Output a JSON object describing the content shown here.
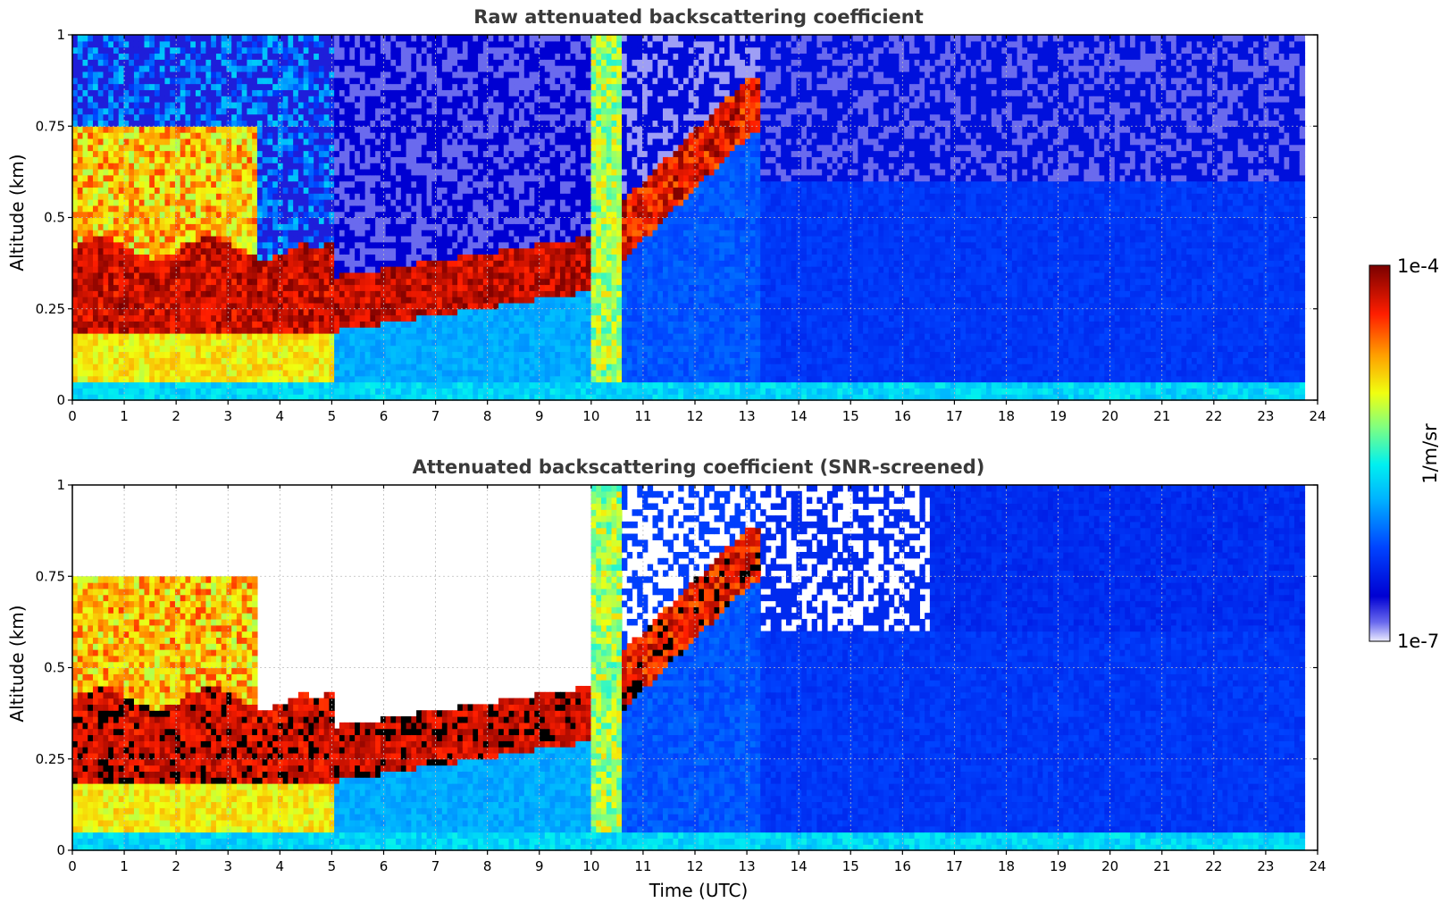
{
  "chart_data": [
    {
      "type": "heatmap",
      "title": "Raw attenuated backscattering coefficient",
      "xlabel": "",
      "ylabel": "Altitude (km)",
      "xlim": [
        0,
        24
      ],
      "ylim": [
        0,
        1
      ],
      "xticks": [
        "0",
        "1",
        "2",
        "3",
        "4",
        "5",
        "6",
        "7",
        "8",
        "9",
        "10",
        "11",
        "12",
        "13",
        "14",
        "15",
        "16",
        "17",
        "18",
        "19",
        "20",
        "21",
        "22",
        "23",
        "24"
      ],
      "yticks": [
        "0",
        "0.25",
        "0.5",
        "0.75",
        "1"
      ],
      "grid": true,
      "data_extent_hours": [
        0,
        23.75
      ],
      "screened": false
    },
    {
      "type": "heatmap",
      "title": "Attenuated backscattering coefficient (SNR-screened)",
      "xlabel": "Time (UTC)",
      "ylabel": "Altitude (km)",
      "xlim": [
        0,
        24
      ],
      "ylim": [
        0,
        1
      ],
      "xticks": [
        "0",
        "1",
        "2",
        "3",
        "4",
        "5",
        "6",
        "7",
        "8",
        "9",
        "10",
        "11",
        "12",
        "13",
        "14",
        "15",
        "16",
        "17",
        "18",
        "19",
        "20",
        "21",
        "22",
        "23",
        "24"
      ],
      "yticks": [
        "0",
        "0.25",
        "0.5",
        "0.75",
        "1"
      ],
      "grid": true,
      "data_extent_hours": [
        0,
        23.75
      ],
      "screened": true
    }
  ],
  "colorbar": {
    "label": "1/m/sr",
    "max_label": "1e-4",
    "min_label": "1e-7",
    "scale": "log",
    "colormap": "jet",
    "colors": [
      "#e8e8ff",
      "#0000c8",
      "#0033ff",
      "#00a0ff",
      "#00ffff",
      "#7fff7f",
      "#ffff00",
      "#ff8000",
      "#ff0000",
      "#800000"
    ]
  }
}
